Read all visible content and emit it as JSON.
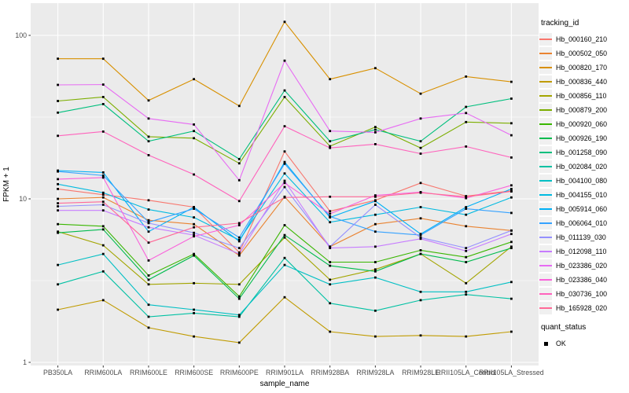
{
  "chart_data": {
    "type": "line",
    "title": "",
    "xlabel": "sample_name",
    "ylabel": "FPKM + 1",
    "y_scale": "log10",
    "ylim": [
      1,
      140
    ],
    "y_ticks": [
      1,
      10,
      100
    ],
    "y_minor_ticks": [
      3.1623,
      31.623
    ],
    "grid": true,
    "legend_position": "right",
    "panel_bg": "#EBEBEB",
    "grid_color": "#FFFFFF",
    "marker": {
      "shape": "square",
      "color": "#000000",
      "meaning": "quant_status OK"
    },
    "categories": [
      "PB350LA",
      "RRIM600LA",
      "RRIM600LE",
      "RRIM600SE",
      "RRIM600PE",
      "RRIM901LA",
      "RRIM928BA",
      "RRIM928LA",
      "RRIM928LE",
      "RRII105LA_Control",
      "RRII105LA_Stressed"
    ],
    "series": [
      {
        "name": "Hb_000160_210",
        "color": "#F8766D",
        "values": [
          11.5,
          10.6,
          9.8,
          8.9,
          4.7,
          19.5,
          8.4,
          9.8,
          12.5,
          10.4,
          11.2
        ]
      },
      {
        "name": "Hb_000502_050",
        "color": "#EA8331",
        "values": [
          10.0,
          10.2,
          7.4,
          7.0,
          4.5,
          10.3,
          5.1,
          7.0,
          7.6,
          6.8,
          6.4
        ]
      },
      {
        "name": "Hb_000820_170",
        "color": "#D89000",
        "values": [
          72,
          72,
          40,
          54,
          37,
          121,
          54,
          63,
          44,
          56,
          52
        ]
      },
      {
        "name": "Hb_000836_440",
        "color": "#C09B00",
        "values": [
          2.1,
          2.4,
          1.63,
          1.44,
          1.32,
          2.5,
          1.54,
          1.44,
          1.46,
          1.44,
          1.54
        ]
      },
      {
        "name": "Hb_000856_110",
        "color": "#A3A500",
        "values": [
          6.3,
          5.2,
          3.0,
          3.05,
          3.0,
          5.8,
          3.2,
          3.7,
          4.6,
          3.05,
          5.1
        ]
      },
      {
        "name": "Hb_000879_200",
        "color": "#7CAE00",
        "values": [
          39.7,
          42,
          24,
          23.5,
          16.5,
          42,
          21,
          27.5,
          20.5,
          29.5,
          29
        ]
      },
      {
        "name": "Hb_000920_060",
        "color": "#39B600",
        "values": [
          7.0,
          6.8,
          3.4,
          4.6,
          2.53,
          6.9,
          4.1,
          4.1,
          4.85,
          4.4,
          5.45
        ]
      },
      {
        "name": "Hb_000926_190",
        "color": "#00BB4E",
        "values": [
          6.2,
          6.5,
          3.2,
          4.5,
          2.45,
          6.0,
          3.9,
          3.6,
          4.6,
          4.1,
          5.0
        ]
      },
      {
        "name": "Hb_001258_090",
        "color": "#00BF7D",
        "values": [
          33.7,
          38,
          22.5,
          26,
          17.5,
          46,
          22.5,
          26.5,
          22.5,
          36.5,
          41
        ]
      },
      {
        "name": "Hb_002084_020",
        "color": "#00C1A3",
        "values": [
          3.0,
          3.6,
          1.9,
          2.0,
          1.9,
          4.35,
          2.3,
          2.07,
          2.4,
          2.6,
          2.45
        ]
      },
      {
        "name": "Hb_004100_080",
        "color": "#00BFC4",
        "values": [
          3.94,
          4.6,
          2.25,
          2.1,
          1.95,
          3.94,
          3.0,
          3.3,
          2.7,
          2.7,
          3.1
        ]
      },
      {
        "name": "Hb_004155_010",
        "color": "#00BAE0",
        "values": [
          12.3,
          10.9,
          8.6,
          7.7,
          5.6,
          14.3,
          7.2,
          8.0,
          8.9,
          8.0,
          10.2
        ]
      },
      {
        "name": "Hb_005914_060",
        "color": "#00B0F6",
        "values": [
          14.9,
          14.5,
          6.3,
          8.9,
          5.5,
          16.8,
          7.7,
          9.7,
          6.1,
          8.9,
          11.5
        ]
      },
      {
        "name": "Hb_006064_010",
        "color": "#35A2FF",
        "values": [
          14.7,
          13.9,
          7.2,
          8.7,
          5.8,
          16.4,
          7.8,
          6.3,
          6.0,
          8.7,
          8.2
        ]
      },
      {
        "name": "Hb_011139_030",
        "color": "#9590FF",
        "values": [
          9.0,
          9.2,
          7.1,
          6.2,
          5.0,
          11.8,
          5.1,
          9.2,
          5.8,
          5.0,
          6.4
        ]
      },
      {
        "name": "Hb_012098_110",
        "color": "#C77CFF",
        "values": [
          8.5,
          8.5,
          6.7,
          6.0,
          4.6,
          12.9,
          5.0,
          5.1,
          5.7,
          4.8,
          6.1
        ]
      },
      {
        "name": "Hb_023386_020",
        "color": "#E76BF3",
        "values": [
          49.8,
          50,
          31,
          28.5,
          13.0,
          70,
          26,
          25.5,
          31,
          33.5,
          24.5
        ]
      },
      {
        "name": "Hb_023386_040",
        "color": "#FA62DB",
        "values": [
          13.2,
          13.5,
          4.2,
          5.9,
          6.9,
          12.5,
          8.1,
          10.5,
          11.0,
          10.1,
          12.1
        ]
      },
      {
        "name": "Hb_030736_100",
        "color": "#FF62BC",
        "values": [
          24.3,
          25.8,
          18.5,
          14.1,
          9.7,
          27.8,
          20.5,
          21.6,
          18.9,
          20.9,
          17.9
        ]
      },
      {
        "name": "Hb_165928_020",
        "color": "#FF6A98",
        "values": [
          9.4,
          9.6,
          5.4,
          6.7,
          7.1,
          10.2,
          10.3,
          10.3,
          10.9,
          10.3,
          11.1
        ]
      }
    ]
  },
  "legend": {
    "tracking_title": "tracking_id",
    "quant_title": "quant_status",
    "quant_items": [
      {
        "label": "OK"
      }
    ]
  }
}
